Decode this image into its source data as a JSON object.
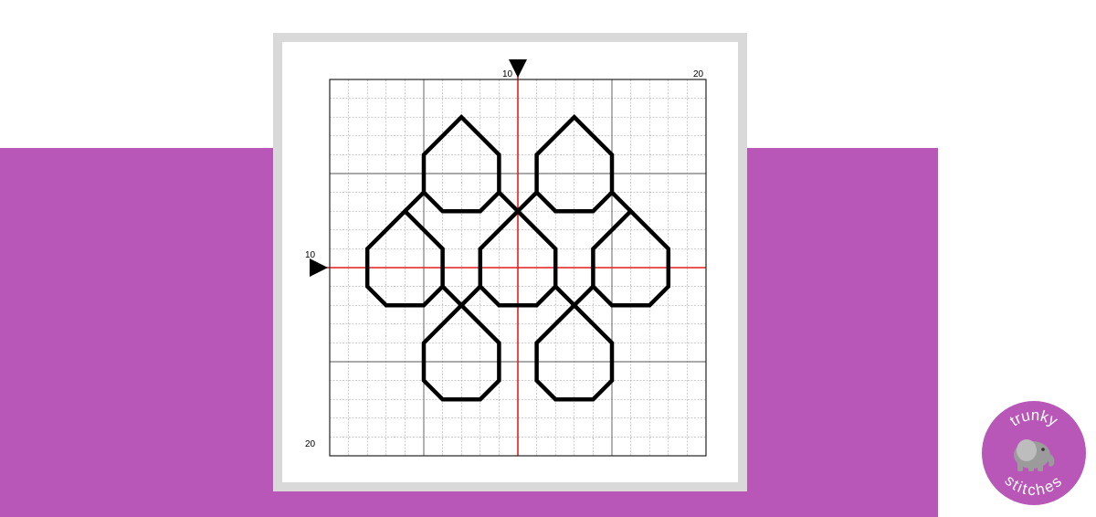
{
  "colors": {
    "band": "#b857b8",
    "card_border": "#d9d9d9",
    "grid_fine": "#9a9a9a",
    "grid_major": "#555555",
    "center_line": "#e41e1e",
    "stitch": "#000000",
    "logo_bg": "#b857b8",
    "logo_text": "#ffffff",
    "elephant": "#9b9b9b"
  },
  "chart": {
    "grid": {
      "cols": 20,
      "rows": 20,
      "major_every": 5
    },
    "top_labels": [
      "10",
      "20"
    ],
    "left_labels": [
      "10",
      "20"
    ],
    "center_markers": [
      "center-arrow-top",
      "center-arrow-left"
    ]
  },
  "logo": {
    "top_text": "trunky",
    "bottom_text": "stitches",
    "icon": "elephant-icon"
  }
}
